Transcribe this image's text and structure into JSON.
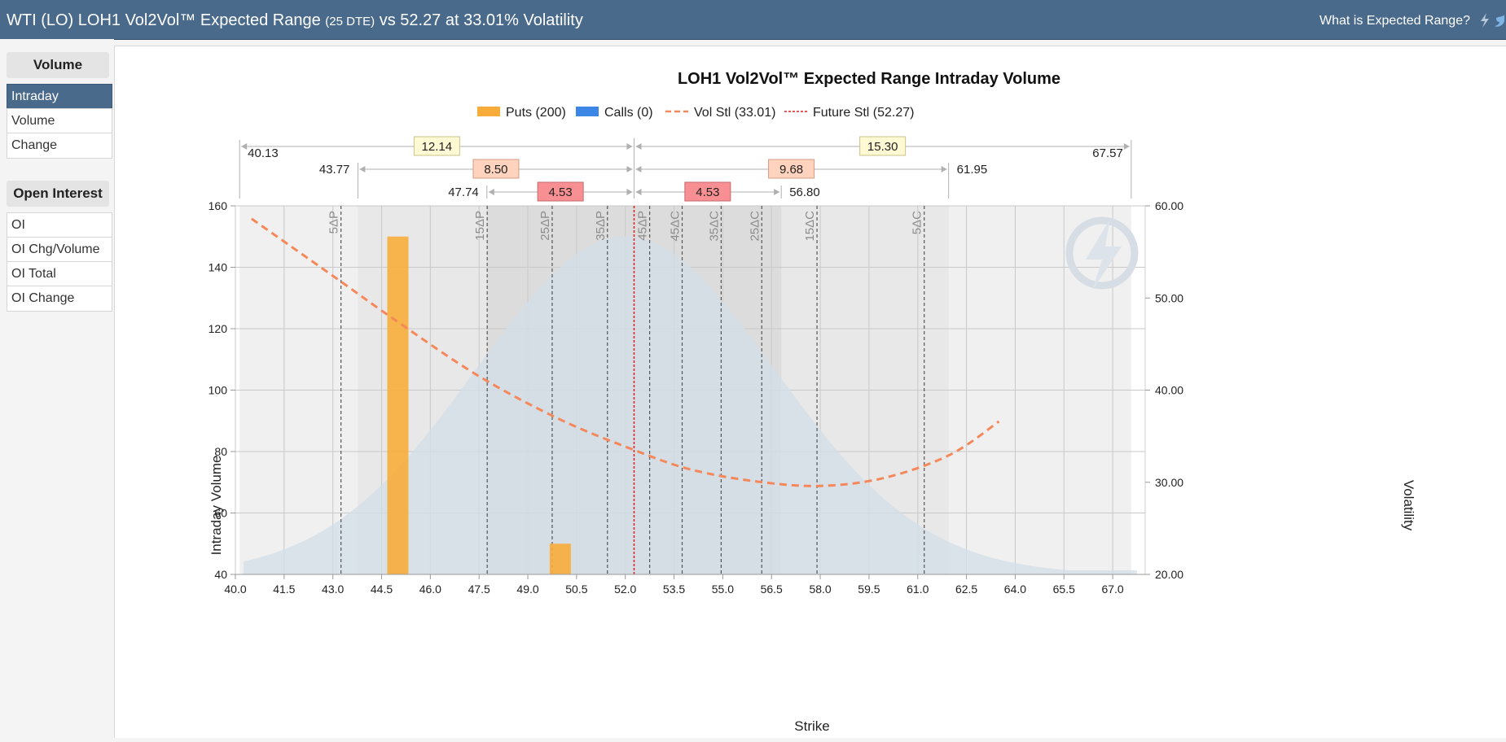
{
  "header": {
    "title_main": "WTI (LO) LOH1 Vol2Vol™ Expected Range",
    "title_dte": "(25 DTE)",
    "title_tail": "vs 52.27 at 33.01% Volatility",
    "help_link": "What is Expected Range?"
  },
  "sidebar": {
    "volume_heading": "Volume",
    "volume_items": [
      {
        "label": "Intraday",
        "active": true
      },
      {
        "label": "Volume",
        "active": false
      },
      {
        "label": "Change",
        "active": false
      }
    ],
    "oi_heading": "Open Interest",
    "oi_items": [
      {
        "label": "OI"
      },
      {
        "label": "OI Chg/Volume"
      },
      {
        "label": "OI Total"
      },
      {
        "label": "OI Change"
      }
    ]
  },
  "colors": {
    "header_bg": "#4a6a8c",
    "puts": "#f8ad3b",
    "calls": "#3c86e6",
    "vol_line": "#f5885a",
    "future_line": "#e02020",
    "distribution": "#d3dde8"
  },
  "chart_data": {
    "type": "bar",
    "title": "LOH1 Vol2Vol™ Expected Range Intraday Volume",
    "xlabel": "Strike",
    "ylabel": "Intraday Volume",
    "y2label": "Volatility",
    "xlim": [
      40.0,
      68.0
    ],
    "ylim": [
      40,
      160
    ],
    "y2lim": [
      20,
      60
    ],
    "x_ticks": [
      "40.0",
      "41.5",
      "43.0",
      "44.5",
      "46.0",
      "47.5",
      "49.0",
      "50.5",
      "52.0",
      "53.5",
      "55.0",
      "56.5",
      "58.0",
      "59.5",
      "61.0",
      "62.5",
      "64.0",
      "65.5",
      "67.0"
    ],
    "y_ticks": [
      "40",
      "60",
      "80",
      "100",
      "120",
      "140",
      "160"
    ],
    "y2_ticks": [
      "20.00",
      "30.00",
      "40.00",
      "50.00",
      "60.00"
    ],
    "legend": [
      {
        "label": "Puts (200)",
        "kind": "box",
        "color": "#f8ad3b"
      },
      {
        "label": "Calls (0)",
        "kind": "box",
        "color": "#3c86e6"
      },
      {
        "label": "Vol Stl (33.01)",
        "kind": "dash",
        "color": "#f5885a"
      },
      {
        "label": "Future Stl (52.27)",
        "kind": "dot",
        "color": "#e02020"
      }
    ],
    "series": [
      {
        "name": "Puts",
        "bars": [
          {
            "strike": 45.0,
            "value": 150
          },
          {
            "strike": 50.0,
            "value": 50
          }
        ]
      },
      {
        "name": "Calls",
        "bars": []
      }
    ],
    "vol_curve": {
      "name": "Vol Stl",
      "points": [
        [
          40.5,
          58.6
        ],
        [
          43.0,
          52.4
        ],
        [
          45.0,
          47.4
        ],
        [
          47.5,
          41.5
        ],
        [
          50.0,
          36.8
        ],
        [
          52.27,
          33.5
        ],
        [
          54.0,
          31.4
        ],
        [
          56.0,
          30.1
        ],
        [
          58.0,
          29.6
        ],
        [
          60.0,
          30.5
        ],
        [
          62.0,
          33.0
        ],
        [
          63.5,
          36.6
        ]
      ]
    },
    "future_settle": 52.27,
    "distribution": {
      "mean": 52.0,
      "sd": 4.6,
      "peak": 150,
      "xmin": 40.25,
      "xmax": 67.75
    },
    "delta_lines": [
      {
        "label": "5ΔP",
        "strike": 43.25
      },
      {
        "label": "15ΔP",
        "strike": 47.75
      },
      {
        "label": "25ΔP",
        "strike": 49.75
      },
      {
        "label": "35ΔP",
        "strike": 51.45
      },
      {
        "label": "45ΔP",
        "strike": 52.75
      },
      {
        "label": "45ΔC",
        "strike": 53.75
      },
      {
        "label": "35ΔC",
        "strike": 54.95
      },
      {
        "label": "25ΔC",
        "strike": 56.2
      },
      {
        "label": "15ΔC",
        "strike": 57.9
      },
      {
        "label": "5ΔC",
        "strike": 61.2
      }
    ],
    "bands": [
      {
        "from": 40.13,
        "to": 67.57,
        "shade": "#f0f0f0"
      },
      {
        "from": 43.77,
        "to": 61.95,
        "shade": "#e8e8e8"
      },
      {
        "from": 47.74,
        "to": 56.8,
        "shade": "#dcdcdc"
      }
    ],
    "ranges": [
      {
        "low": 40.13,
        "high": 67.57,
        "low_label": "40.13",
        "high_label": "67.57",
        "left_width": "12.14",
        "right_width": "15.30",
        "style": "yellow"
      },
      {
        "low": 43.77,
        "high": 61.95,
        "low_label": "43.77",
        "high_label": "61.95",
        "left_width": "8.50",
        "right_width": "9.68",
        "style": "peach"
      },
      {
        "low": 47.74,
        "high": 56.8,
        "low_label": "47.74",
        "high_label": "56.80",
        "left_width": "4.53",
        "right_width": "4.53",
        "style": "red"
      }
    ]
  }
}
